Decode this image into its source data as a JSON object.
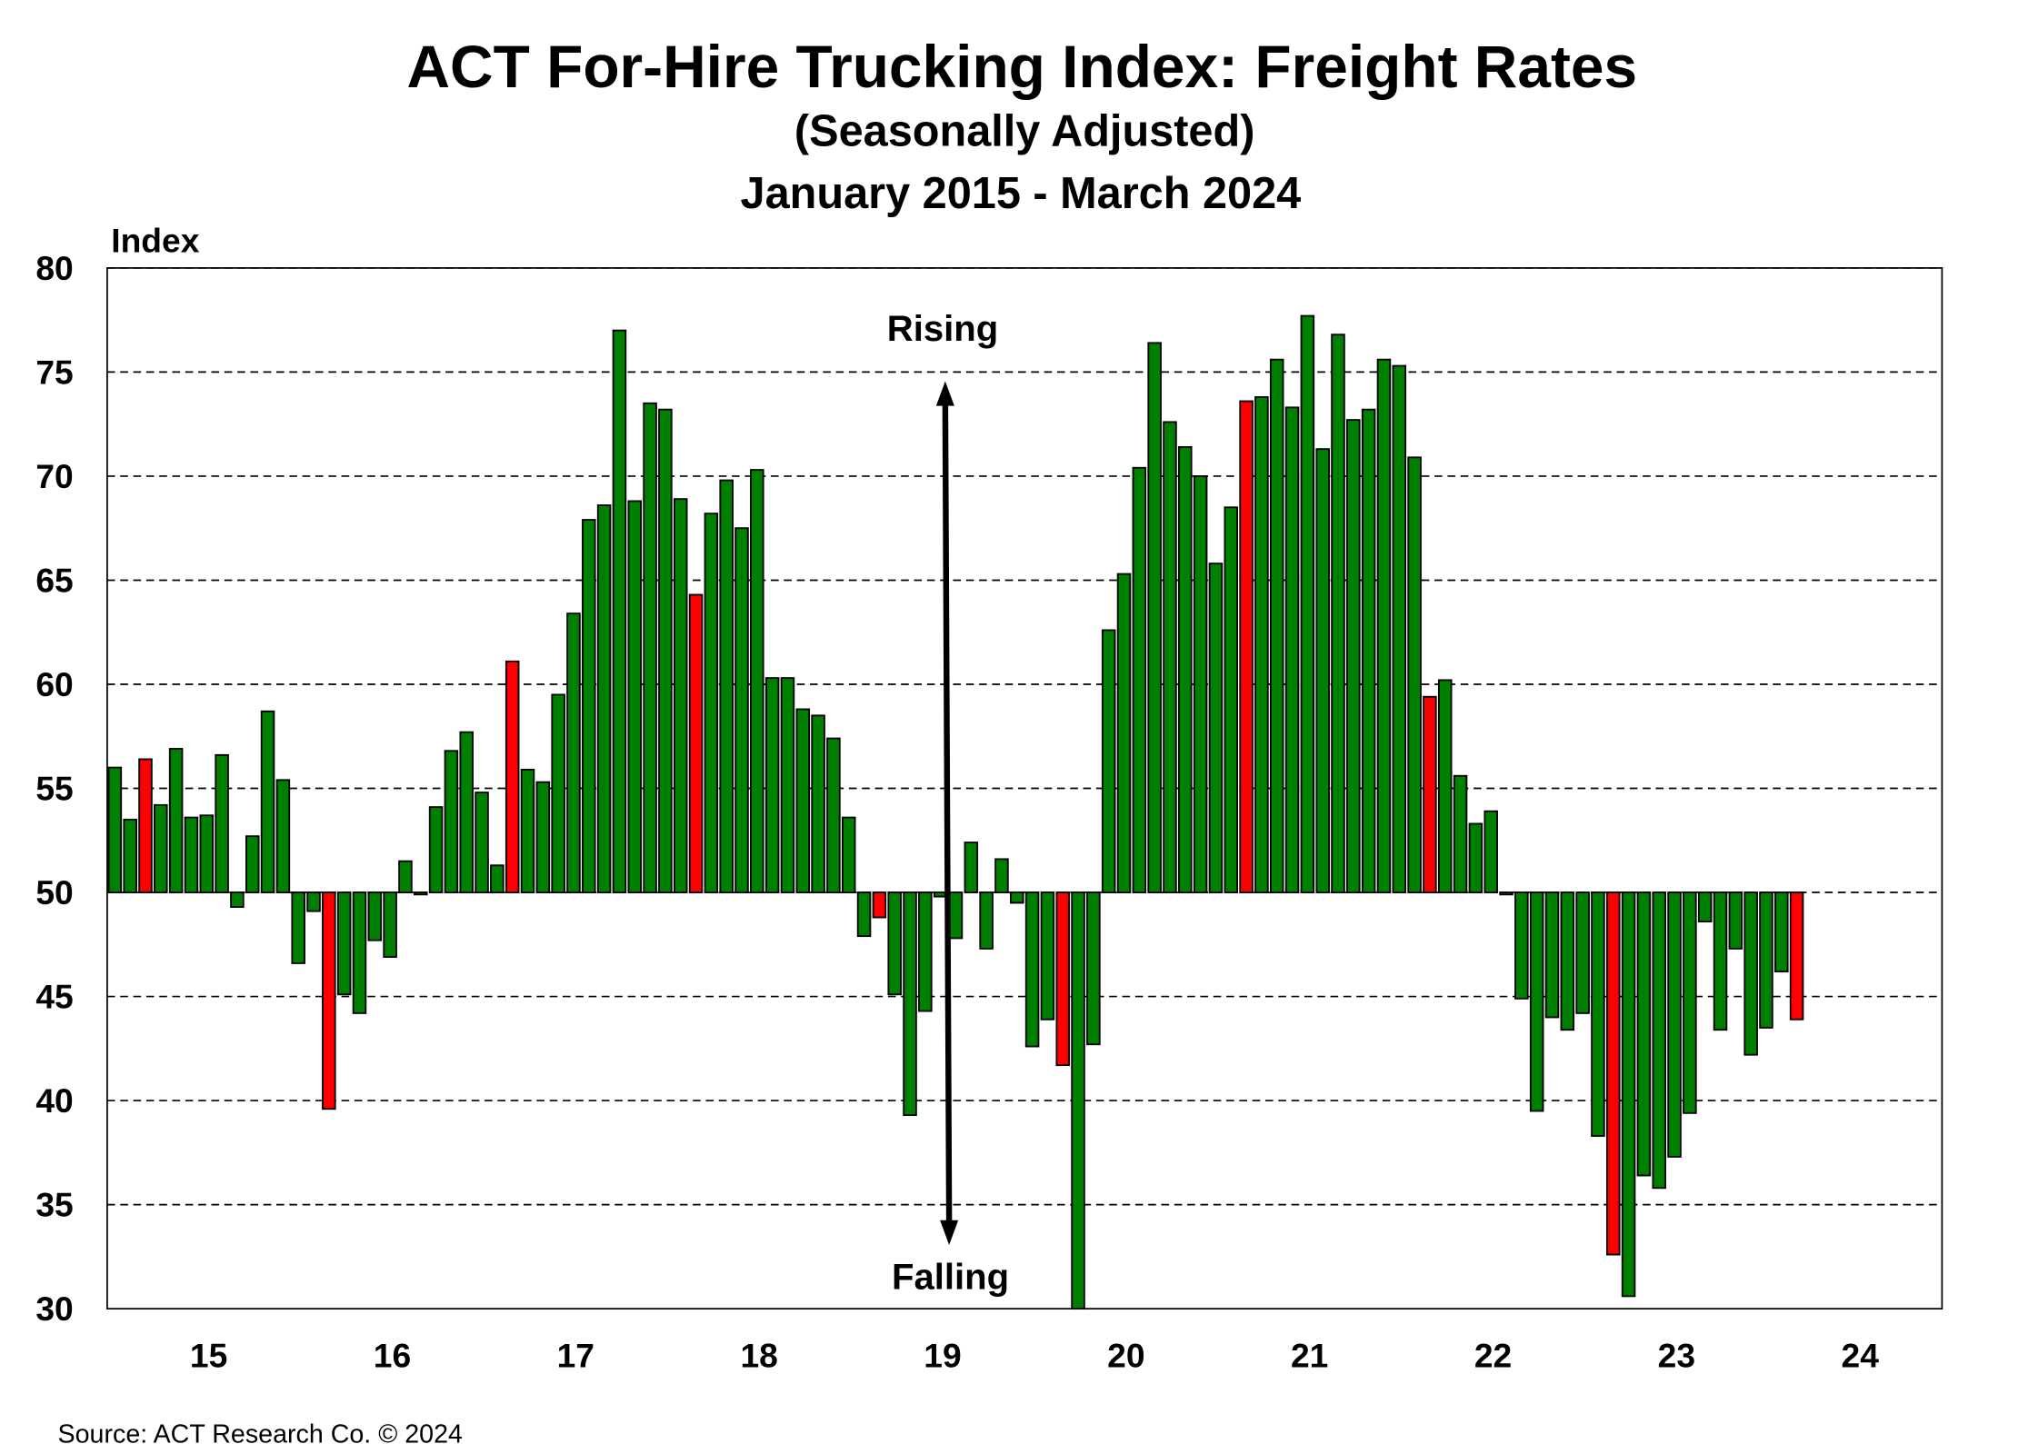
{
  "chart_data": {
    "type": "bar",
    "title": "ACT For-Hire Trucking Index: Freight Rates",
    "subtitle": "(Seasonally Adjusted)",
    "period": "January 2015 - March 2024",
    "ylabel": "Index",
    "xlabel": "",
    "ylim": [
      30,
      80
    ],
    "baseline": 50,
    "yticks": [
      30,
      35,
      40,
      45,
      50,
      55,
      60,
      65,
      70,
      75,
      80
    ],
    "xtick_labels": [
      "15",
      "16",
      "17",
      "18",
      "19",
      "20",
      "21",
      "22",
      "23",
      "24"
    ],
    "grid": "horizontal dashed",
    "colors": {
      "normal": "#008000",
      "highlight": "#ff0000"
    },
    "annotations": {
      "up": "Rising",
      "down": "Falling"
    },
    "source": "Source: ACT Research Co. © 2024",
    "values": [
      56.0,
      53.5,
      56.4,
      54.2,
      56.9,
      53.6,
      53.7,
      56.6,
      49.3,
      52.7,
      58.7,
      55.4,
      46.6,
      49.1,
      39.6,
      45.1,
      44.2,
      47.7,
      46.9,
      51.5,
      49.9,
      54.1,
      56.8,
      57.7,
      54.8,
      51.3,
      61.1,
      55.9,
      55.3,
      59.5,
      63.4,
      67.9,
      68.6,
      77.0,
      68.8,
      73.5,
      73.2,
      68.9,
      64.3,
      68.2,
      69.8,
      67.5,
      70.3,
      60.3,
      60.3,
      58.8,
      58.5,
      57.4,
      53.6,
      47.9,
      48.8,
      45.1,
      39.3,
      44.3,
      49.8,
      47.8,
      52.4,
      47.3,
      51.6,
      49.5,
      42.6,
      43.9,
      41.7,
      30.0,
      42.7,
      62.6,
      65.3,
      70.4,
      76.4,
      72.6,
      71.4,
      70.0,
      65.8,
      68.5,
      73.6,
      73.8,
      75.6,
      73.3,
      77.7,
      71.3,
      76.8,
      72.7,
      73.2,
      75.6,
      75.3,
      70.9,
      59.4,
      60.2,
      55.6,
      53.3,
      53.9,
      49.9,
      44.9,
      39.5,
      44.0,
      43.4,
      44.2,
      38.3,
      32.6,
      30.6,
      36.4,
      35.8,
      37.3,
      39.4,
      48.6,
      43.4,
      47.3,
      42.2,
      43.5,
      46.2,
      43.9
    ],
    "highlighted_indices": [
      2,
      14,
      26,
      38,
      50,
      62,
      74,
      86,
      98,
      110
    ]
  }
}
